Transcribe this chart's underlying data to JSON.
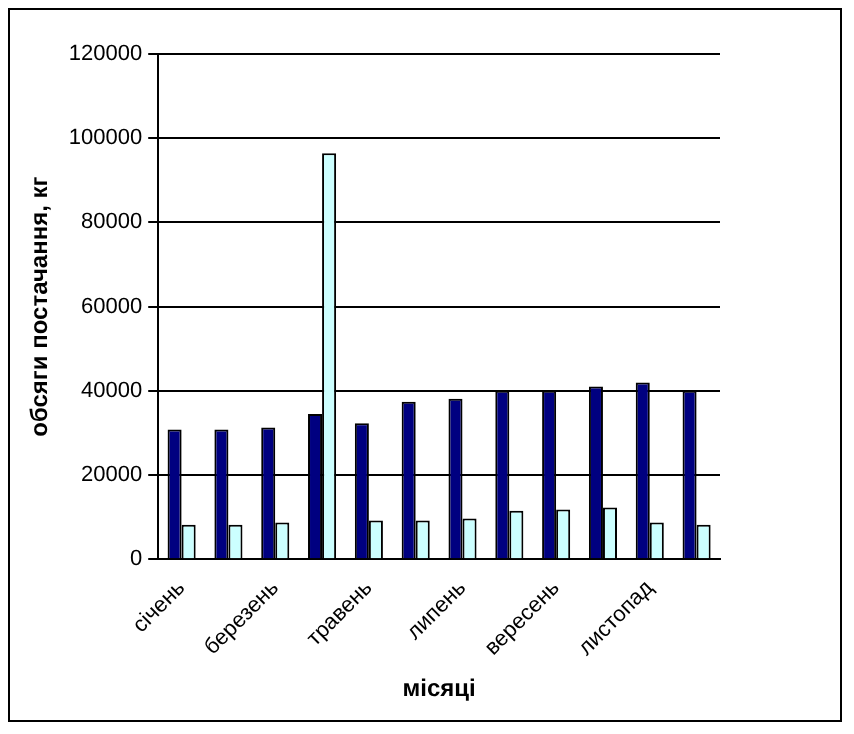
{
  "chart_data": {
    "type": "bar",
    "xlabel": "місяці",
    "ylabel": "обсяги постачання, кг",
    "categories": [
      "січень",
      null,
      "березень",
      null,
      "травень",
      null,
      "липень",
      null,
      "вересень",
      null,
      "листопад",
      null
    ],
    "series": [
      {
        "color": "#000080",
        "values": [
          30800,
          30800,
          31300,
          34500,
          32300,
          37400,
          38100,
          40000,
          40000,
          41000,
          42000,
          40000
        ]
      },
      {
        "color": "#ccffff",
        "values": [
          8200,
          8200,
          8700,
          96400,
          9200,
          9200,
          9700,
          11500,
          11800,
          12300,
          8700,
          8200
        ]
      }
    ],
    "ylim": [
      0,
      120000
    ],
    "yticks": [
      0,
      20000,
      40000,
      60000,
      80000,
      100000,
      120000
    ],
    "grid": "y",
    "legend": false
  }
}
